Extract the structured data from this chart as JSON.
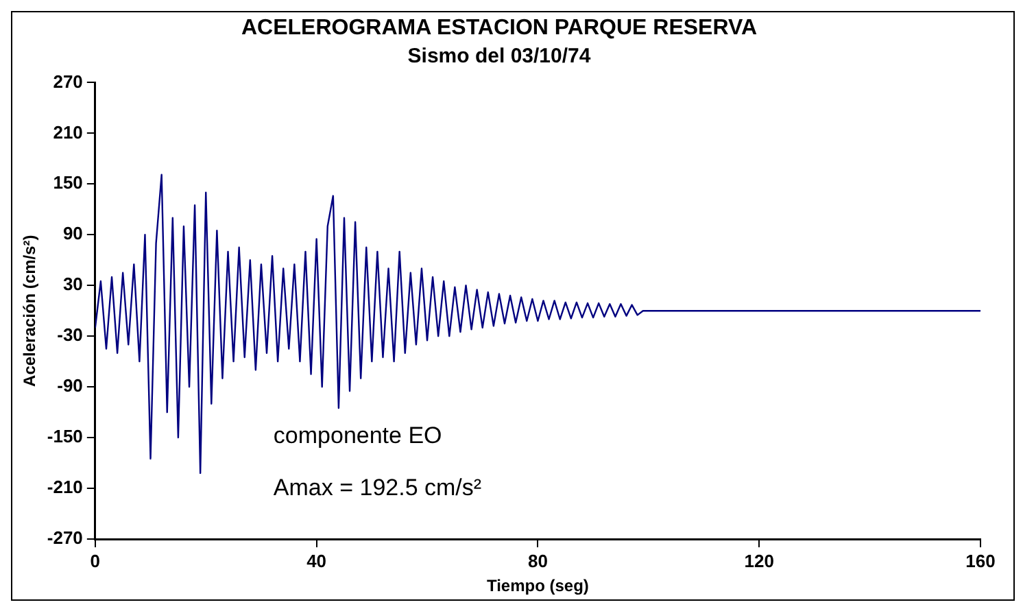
{
  "chart_data": {
    "type": "line",
    "title": "ACELEROGRAMA ESTACION PARQUE RESERVA",
    "subtitle": "Sismo del 03/10/74",
    "xlabel": "Tiempo (seg)",
    "ylabel": "Aceleración (cm/s²)",
    "annotations": [
      "componente EO",
      "Amax = 192.5 cm/s²"
    ],
    "x": [
      0,
      1,
      2,
      3,
      4,
      5,
      6,
      7,
      8,
      9,
      10,
      11,
      12,
      13,
      14,
      15,
      16,
      17,
      18,
      19,
      20,
      21,
      22,
      23,
      24,
      25,
      26,
      27,
      28,
      29,
      30,
      31,
      32,
      33,
      34,
      35,
      36,
      37,
      38,
      39,
      40,
      41,
      42,
      43,
      44,
      45,
      46,
      47,
      48,
      49,
      50,
      51,
      52,
      53,
      54,
      55,
      56,
      57,
      58,
      59,
      60,
      61,
      62,
      63,
      64,
      65,
      66,
      67,
      68,
      69,
      70,
      71,
      72,
      73,
      74,
      75,
      76,
      77,
      78,
      79,
      80,
      81,
      82,
      83,
      84,
      85,
      86,
      87,
      88,
      89,
      90,
      91,
      92,
      93,
      94,
      95,
      96,
      97,
      98,
      99,
      160
    ],
    "series": [
      {
        "color": "#000080",
        "values": [
          -20,
          35,
          -45,
          40,
          -50,
          45,
          -40,
          55,
          -60,
          90,
          -175,
          80,
          161,
          -120,
          110,
          -150,
          100,
          -90,
          125,
          -192,
          140,
          -110,
          95,
          -80,
          70,
          -60,
          75,
          -55,
          60,
          -70,
          55,
          -50,
          65,
          -60,
          50,
          -45,
          55,
          -60,
          70,
          -75,
          85,
          -90,
          100,
          136,
          -115,
          110,
          -95,
          105,
          -80,
          75,
          -60,
          70,
          -55,
          50,
          -60,
          70,
          -50,
          45,
          -40,
          50,
          -35,
          40,
          -30,
          35,
          -30,
          28,
          -25,
          30,
          -22,
          25,
          -20,
          22,
          -18,
          20,
          -15,
          18,
          -14,
          16,
          -12,
          14,
          -12,
          12,
          -10,
          12,
          -10,
          10,
          -9,
          10,
          -8,
          9,
          -8,
          9,
          -7,
          8,
          -7,
          8,
          -6,
          7,
          -5,
          0,
          0
        ]
      }
    ],
    "xlim": [
      0,
      160
    ],
    "xticks": [
      0,
      40,
      80,
      120,
      160
    ],
    "ylim": [
      -270,
      270
    ],
    "yticks": [
      -270,
      -210,
      -150,
      -90,
      -30,
      30,
      90,
      150,
      210,
      270
    ],
    "grid": false,
    "legend": false,
    "marker": "none",
    "line_style": "solid"
  }
}
